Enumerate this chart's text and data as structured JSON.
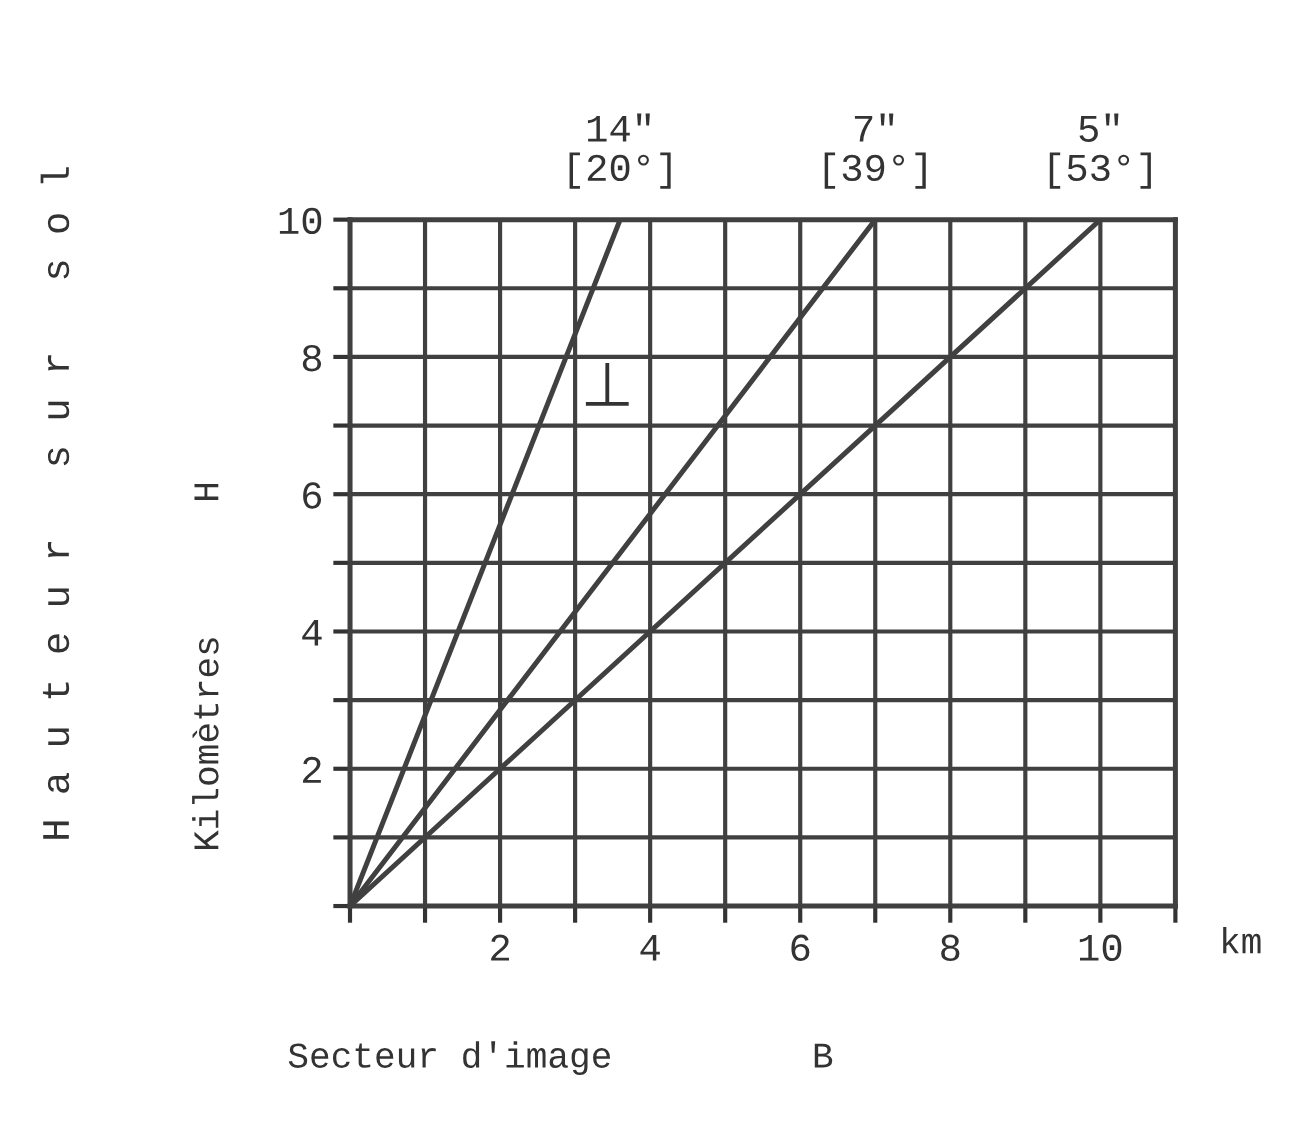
{
  "chart_data": {
    "type": "line",
    "xlabel": "Secteur d'image",
    "annotations": [
      "⊥",
      "Kilomètres",
      "H",
      "B",
      "km",
      "H a u t e u r   s u r   s o l"
    ],
    "xlim": [
      0,
      11
    ],
    "ylim": [
      0,
      10
    ],
    "xticks": [
      {
        "value": 0,
        "label": null
      },
      {
        "value": 1,
        "label": null
      },
      2,
      {
        "value": 3,
        "label": null
      },
      4,
      {
        "value": 5,
        "label": null
      },
      6,
      {
        "value": 7,
        "label": null
      },
      8,
      {
        "value": 9,
        "label": null
      },
      10,
      {
        "value": 11,
        "label": null
      }
    ],
    "yticks": [
      {
        "value": 0,
        "label": null
      },
      {
        "value": 1,
        "label": null
      },
      2,
      {
        "value": 3,
        "label": null
      },
      4,
      {
        "value": 5,
        "label": null
      },
      6,
      {
        "value": 7,
        "label": null
      },
      8,
      {
        "value": 9,
        "label": null
      },
      10
    ],
    "grid": true,
    "legend": false,
    "marker": "none",
    "line_style": "solid",
    "series": [
      {
        "name": "14\"\n[20°]",
        "color": "#404040",
        "x": [
          0,
          3.6
        ],
        "values": [
          0,
          10
        ]
      },
      {
        "name": "7\"\n[39°]",
        "color": "#404040",
        "x": [
          0,
          7
        ],
        "values": [
          0,
          10
        ]
      },
      {
        "name": "5\"\n[53°]",
        "color": "#404040",
        "x": [
          0,
          10
        ],
        "values": [
          0,
          10
        ]
      }
    ]
  }
}
